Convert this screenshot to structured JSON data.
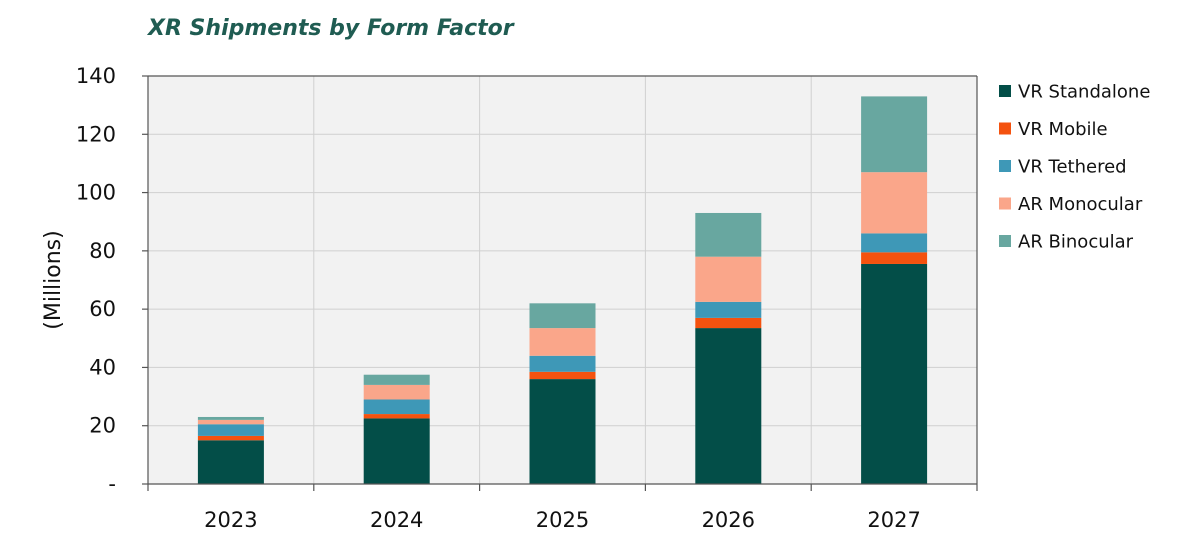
{
  "chart_data": {
    "type": "bar",
    "stacked": true,
    "title": "XR Shipments by Form Factor",
    "xlabel": "",
    "ylabel": "(Millions)",
    "ylim": [
      0,
      140
    ],
    "yticks": [
      0,
      20,
      40,
      60,
      80,
      100,
      120,
      140
    ],
    "ytick_labels": [
      "-",
      "20",
      "40",
      "60",
      "80",
      "100",
      "120",
      "140"
    ],
    "categories": [
      "2023",
      "2024",
      "2025",
      "2026",
      "2027"
    ],
    "series": [
      {
        "name": "VR Standalone",
        "color": "#034e48",
        "values": [
          15,
          22.5,
          36,
          53.5,
          75.5
        ]
      },
      {
        "name": "VR Mobile",
        "color": "#f4520f",
        "values": [
          1.5,
          1.5,
          2.5,
          3.5,
          4
        ]
      },
      {
        "name": "VR Tethered",
        "color": "#3e98b7",
        "values": [
          4,
          5,
          5.5,
          5.5,
          6.5
        ]
      },
      {
        "name": "AR Monocular",
        "color": "#faa68a",
        "values": [
          1.5,
          5,
          9.5,
          15.5,
          21
        ]
      },
      {
        "name": "AR Binocular",
        "color": "#68a7a0",
        "values": [
          1,
          3.5,
          8.5,
          15,
          26
        ]
      }
    ],
    "grid": true,
    "legend_position": "right"
  }
}
